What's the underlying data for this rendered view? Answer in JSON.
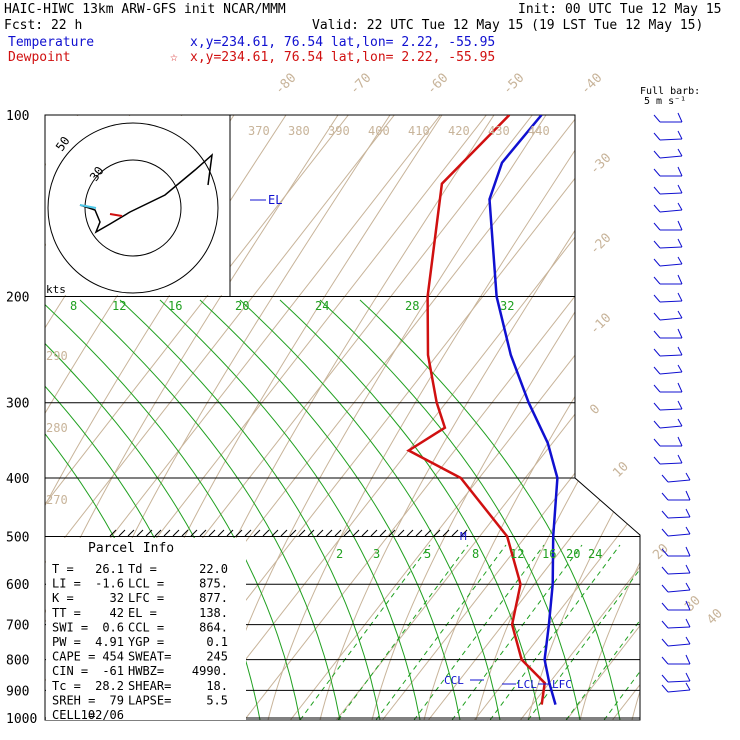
{
  "header": {
    "title": "HAIC-HIWC 13km ARW-GFS init   NCAR/MMM",
    "init": "Init: 00 UTC Tue 12 May 15",
    "fcst": "Fcst:    22 h",
    "valid": "Valid: 22 UTC Tue 12 May 15 (19 LST Tue 12 May 15)",
    "temperature_label": "Temperature",
    "temperature_loc": "x,y=234.61, 76.54   lat,lon=  2.22, -55.95",
    "dewpoint_label": "Dewpoint",
    "dewpoint_marker": "☆",
    "dewpoint_loc": "x,y=234.61, 76.54   lat,lon=  2.22, -55.95",
    "barb_key": "Full barb:",
    "barb_key_units": "5 m s⁻¹"
  },
  "hodograph": {
    "rings": [
      "50",
      "30"
    ],
    "units": "kts"
  },
  "parcel": {
    "title": "Parcel Info",
    "rows": [
      [
        "T   =",
        "26.1",
        "Td  =",
        "22.0"
      ],
      [
        "LI  =",
        "-1.6",
        "LCL =",
        "875."
      ],
      [
        "K   =",
        "32",
        "LFC =",
        "877."
      ],
      [
        "TT  =",
        "42",
        "EL  =",
        "138."
      ],
      [
        "SWI =",
        "0.6",
        "CCL =",
        "864."
      ],
      [
        "PW  =",
        "4.91",
        "YGP =",
        "0.1"
      ],
      [
        "CAPE =",
        "454",
        "SWEAT=",
        "245"
      ],
      [
        "CIN  =",
        "-61",
        "HWBZ=",
        "4990."
      ],
      [
        "Tc   =",
        "28.2",
        "SHEAR=",
        "18."
      ],
      [
        "SREH =",
        "79",
        "LAPSE=",
        "5.5"
      ],
      [
        "CELL =",
        "102/06",
        "",
        ""
      ]
    ]
  },
  "levels": {
    "el": "EL",
    "ccl": "CCL",
    "lcl": "LCL",
    "lfc": "LFC",
    "m": "M"
  },
  "colors": {
    "temperature": "#1010d0",
    "dewpoint": "#d01010",
    "isotherm": "#c8b49a",
    "mixing_ratio": "#20a020",
    "isobar": "#000000"
  },
  "chart_data": {
    "type": "skew-t",
    "pressure_levels": [
      100,
      200,
      300,
      400,
      500,
      600,
      700,
      800,
      900,
      1000
    ],
    "pressure_axis": "log",
    "isotherm_labels": [
      "-80",
      "-70",
      "-60",
      "-50",
      "-40",
      "-30",
      "-20",
      "-10",
      "0",
      "10",
      "20",
      "30",
      "40"
    ],
    "theta_labels": [
      "370",
      "380",
      "390",
      "400",
      "410",
      "420",
      "430",
      "440"
    ],
    "theta_e_labels": [
      "290",
      "280",
      "270"
    ],
    "mixing_ratio_upper": [
      "8",
      "12",
      "16",
      "20",
      "24",
      "28",
      "32"
    ],
    "mixing_ratio_lower": [
      "2",
      "3",
      "5",
      "8",
      "12",
      "16",
      "20",
      "24"
    ],
    "temperature_profile": [
      {
        "p": 100,
        "t": -78
      },
      {
        "p": 120,
        "t": -78.5
      },
      {
        "p": 138,
        "t": -75
      },
      {
        "p": 200,
        "t": -57
      },
      {
        "p": 250,
        "t": -44
      },
      {
        "p": 300,
        "t": -32
      },
      {
        "p": 350,
        "t": -21
      },
      {
        "p": 400,
        "t": -13
      },
      {
        "p": 500,
        "t": -4
      },
      {
        "p": 600,
        "t": 4
      },
      {
        "p": 700,
        "t": 10
      },
      {
        "p": 800,
        "t": 15
      },
      {
        "p": 875,
        "t": 20
      },
      {
        "p": 950,
        "t": 25
      }
    ],
    "dewpoint_profile": [
      {
        "p": 100,
        "t": -85
      },
      {
        "p": 130,
        "t": -88
      },
      {
        "p": 200,
        "t": -72
      },
      {
        "p": 250,
        "t": -62
      },
      {
        "p": 300,
        "t": -52
      },
      {
        "p": 330,
        "t": -46
      },
      {
        "p": 360,
        "t": -50
      },
      {
        "p": 400,
        "t": -34
      },
      {
        "p": 500,
        "t": -14
      },
      {
        "p": 600,
        "t": -3
      },
      {
        "p": 700,
        "t": 2
      },
      {
        "p": 800,
        "t": 10
      },
      {
        "p": 875,
        "t": 19
      },
      {
        "p": 950,
        "t": 22
      }
    ]
  }
}
